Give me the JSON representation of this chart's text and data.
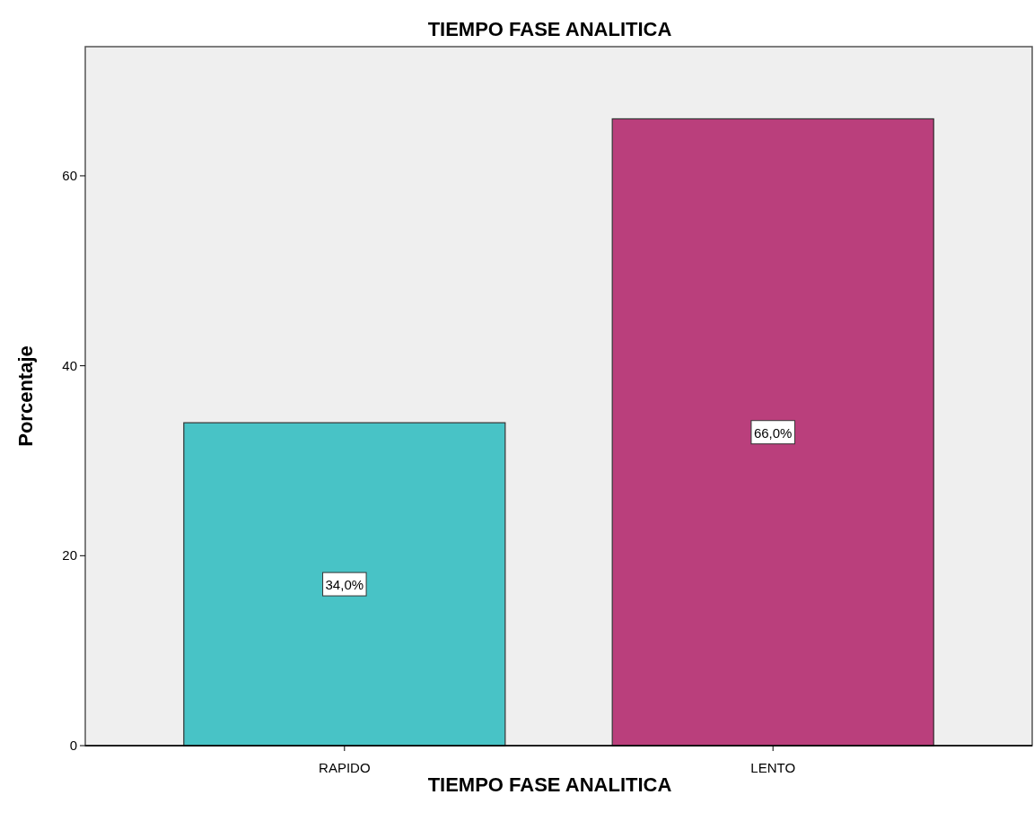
{
  "chart_data": {
    "type": "bar",
    "title": "TIEMPO FASE ANALITICA",
    "xlabel": "TIEMPO FASE ANALITICA",
    "ylabel": "Porcentaje",
    "categories": [
      "RAPIDO",
      "LENTO"
    ],
    "values": [
      34,
      66
    ],
    "colors": [
      "#48c3c6",
      "#ba3f7c"
    ],
    "value_labels": [
      "34,0%",
      "66,0%"
    ],
    "ylim": [
      0,
      73.6
    ],
    "yticks": [
      0,
      20,
      40,
      60
    ],
    "grid": false
  }
}
